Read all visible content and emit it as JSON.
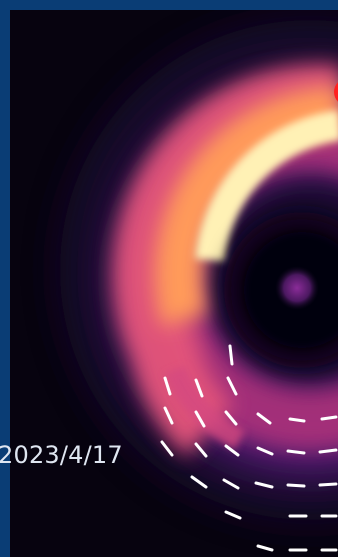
{
  "image": {
    "date_label": "2023/4/17"
  },
  "colors": {
    "frame": "#0a3d75",
    "background": "#07030f",
    "ring_core": "#fff4c0",
    "ring_mid": "#ff9a5a",
    "ring_outer": "#c33f86",
    "marker": "#ff2020",
    "polarization_ticks": "#ffffff"
  }
}
